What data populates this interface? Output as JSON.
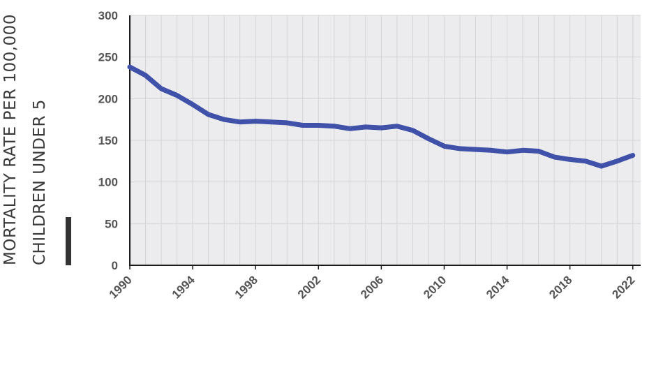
{
  "chart_data": {
    "type": "line",
    "title": "",
    "xlabel": "",
    "ylabel_lines": [
      "MORTALITY RATE PER 100,000",
      "CHILDREN UNDER 5"
    ],
    "ylim": [
      0,
      300
    ],
    "xlim": [
      1990,
      2022.5
    ],
    "y_ticks": [
      "0",
      "50",
      "100",
      "150",
      "200",
      "250",
      "300"
    ],
    "x_ticks": [
      "1990",
      "1994",
      "1998",
      "2002",
      "2006",
      "2010",
      "2014",
      "2018",
      "2022"
    ],
    "grid": true,
    "legend": "none",
    "colors": {
      "line": "#3f51a8",
      "plot_background": "#ececee",
      "grid": "#d4d4d8",
      "axis": "#1a1a1a",
      "ylabel_bar": "#333333"
    },
    "series": [
      {
        "x": [
          1990,
          1991,
          1992,
          1993,
          1994,
          1995,
          1996,
          1997,
          1998,
          1999,
          2000,
          2001,
          2002,
          2003,
          2004,
          2005,
          2006,
          2007,
          2008,
          2009,
          2010,
          2011,
          2012,
          2013,
          2014,
          2015,
          2016,
          2017,
          2018,
          2019,
          2020,
          2021,
          2022
        ],
        "y": [
          238,
          228,
          212,
          204,
          193,
          181,
          175,
          172,
          173,
          172,
          171,
          168,
          168,
          167,
          164,
          166,
          165,
          167,
          162,
          152,
          143,
          140,
          139,
          138,
          136,
          138,
          137,
          130,
          127,
          125,
          119,
          125,
          132
        ]
      }
    ]
  }
}
